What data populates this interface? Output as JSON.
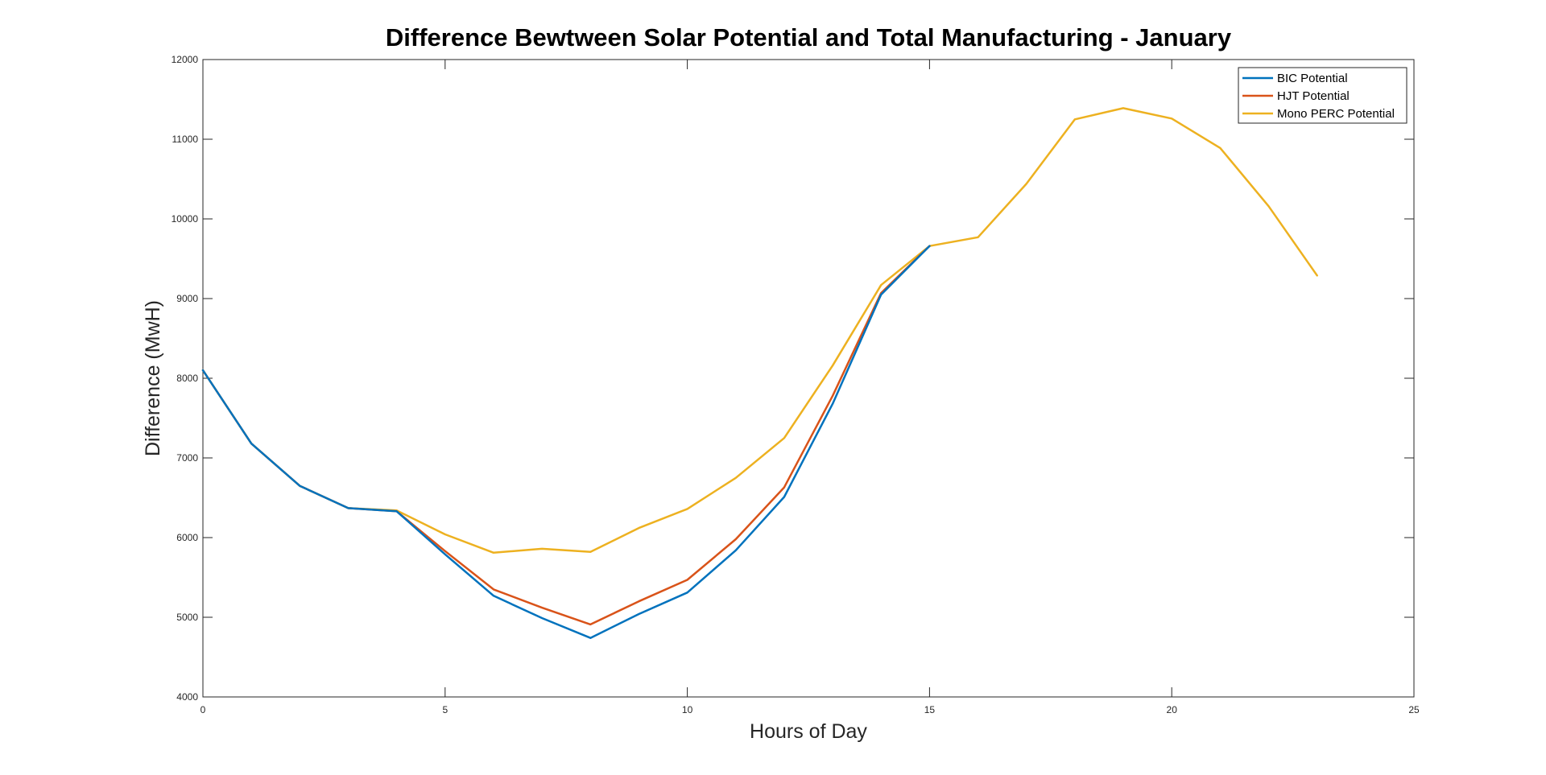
{
  "chart_data": {
    "type": "line",
    "title": "Difference Bewtween Solar Potential and Total Manufacturing - January",
    "xlabel": "Hours of Day",
    "ylabel": "Difference (MwH)",
    "xlim": [
      0,
      25
    ],
    "ylim": [
      4000,
      12000
    ],
    "xticks": [
      0,
      5,
      10,
      15,
      20,
      25
    ],
    "yticks": [
      4000,
      5000,
      6000,
      7000,
      8000,
      9000,
      10000,
      11000,
      12000
    ],
    "grid": false,
    "legend_position": "top-right",
    "series": [
      {
        "name": "BIC Potential",
        "color": "#0072BD",
        "x": [
          0,
          1,
          2,
          3,
          4,
          5,
          6,
          7,
          8,
          9,
          10,
          11,
          12,
          13,
          14,
          15
        ],
        "y": [
          8100,
          7180,
          6650,
          6370,
          6330,
          5790,
          5270,
          4990,
          4740,
          5040,
          5310,
          5840,
          6510,
          7680,
          9050,
          9660
        ]
      },
      {
        "name": "HJT Potential",
        "color": "#D95319",
        "x": [
          0,
          1,
          2,
          3,
          4,
          5,
          6,
          7,
          8,
          9,
          10,
          11,
          12,
          13,
          14,
          15
        ],
        "y": [
          8100,
          7180,
          6650,
          6370,
          6330,
          5830,
          5350,
          5120,
          4910,
          5200,
          5470,
          5980,
          6630,
          7780,
          9070,
          9660
        ]
      },
      {
        "name": "Mono PERC Potential",
        "color": "#EDB120",
        "x": [
          0,
          1,
          2,
          3,
          4,
          5,
          6,
          7,
          8,
          9,
          10,
          11,
          12,
          13,
          14,
          15,
          16,
          17,
          18,
          19,
          20,
          21,
          22,
          23
        ],
        "y": [
          8100,
          7180,
          6650,
          6370,
          6340,
          6040,
          5810,
          5860,
          5820,
          6120,
          6360,
          6750,
          7250,
          8160,
          9170,
          9660,
          9770,
          10440,
          11250,
          11390,
          11260,
          10890,
          10160,
          9290
        ]
      }
    ]
  }
}
